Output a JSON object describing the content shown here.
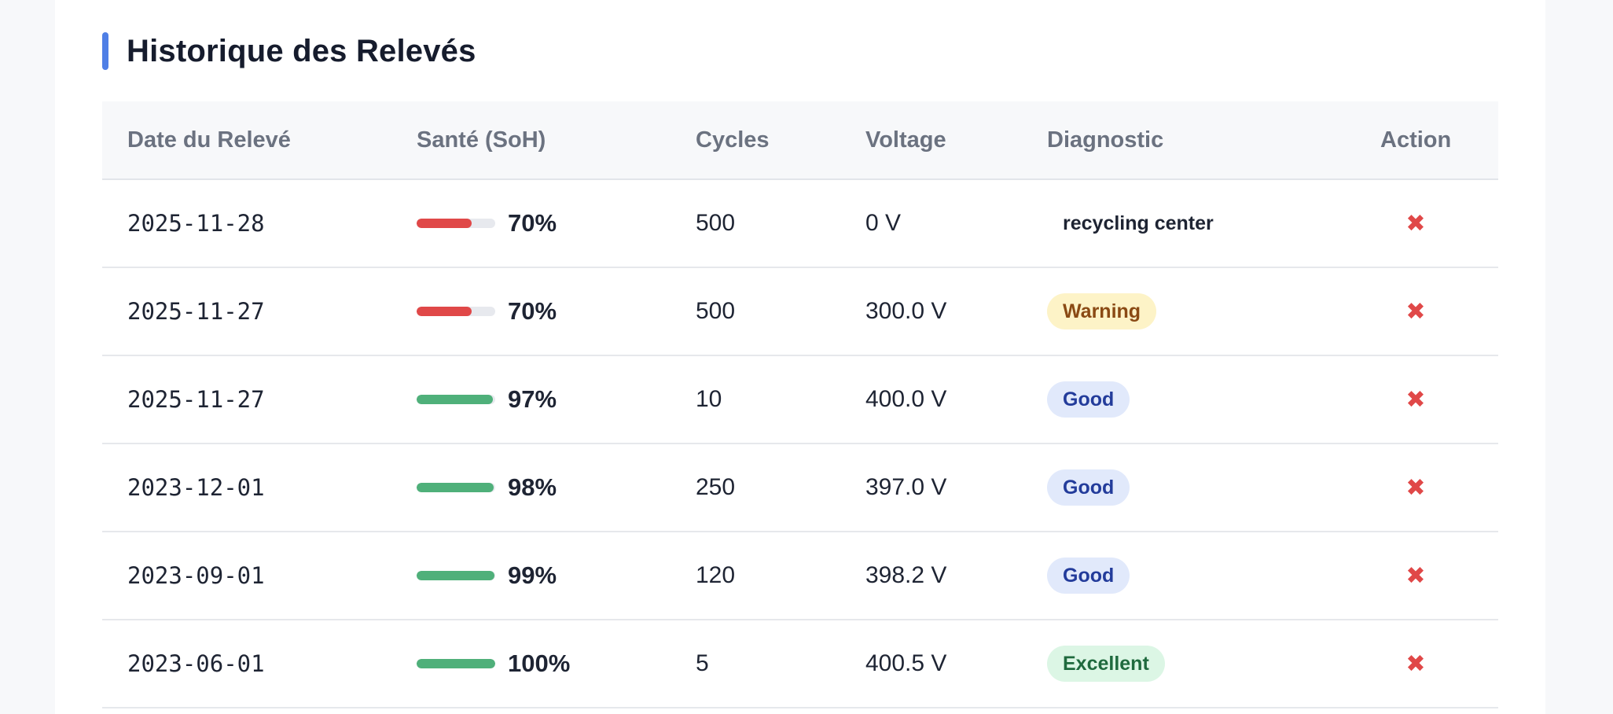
{
  "section": {
    "title": "Historique des Relevés",
    "accent_color": "#4f7fe6"
  },
  "table": {
    "headers": [
      "Date du Relevé",
      "Santé (SoH)",
      "Cycles",
      "Voltage",
      "Diagnostic",
      "Action"
    ],
    "rows": [
      {
        "date": "2025-11-28",
        "soh": "70%",
        "soh_fraction": 0.7,
        "soh_color": "#e04848",
        "cycles": "500",
        "voltage": "0 V",
        "diagnostic": "recycling center",
        "diag_style": "plain",
        "action_icon": "close-icon",
        "action": "✖"
      },
      {
        "date": "2025-11-27",
        "soh": "70%",
        "soh_fraction": 0.7,
        "soh_color": "#e04848",
        "cycles": "500",
        "voltage": "300.0 V",
        "diagnostic": "Warning",
        "diag_style": "warning",
        "action_icon": "close-icon",
        "action": "✖"
      },
      {
        "date": "2025-11-27",
        "soh": "97%",
        "soh_fraction": 0.97,
        "soh_color": "#4fb07a",
        "cycles": "10",
        "voltage": "400.0 V",
        "diagnostic": "Good",
        "diag_style": "good",
        "action_icon": "close-icon",
        "action": "✖"
      },
      {
        "date": "2023-12-01",
        "soh": "98%",
        "soh_fraction": 0.98,
        "soh_color": "#4fb07a",
        "cycles": "250",
        "voltage": "397.0 V",
        "diagnostic": "Good",
        "diag_style": "good",
        "action_icon": "close-icon",
        "action": "✖"
      },
      {
        "date": "2023-09-01",
        "soh": "99%",
        "soh_fraction": 0.99,
        "soh_color": "#4fb07a",
        "cycles": "120",
        "voltage": "398.2 V",
        "diagnostic": "Good",
        "diag_style": "good",
        "action_icon": "close-icon",
        "action": "✖"
      },
      {
        "date": "2023-06-01",
        "soh": "100%",
        "soh_fraction": 1.0,
        "soh_color": "#4fb07a",
        "cycles": "5",
        "voltage": "400.5 V",
        "diagnostic": "Excellent",
        "diag_style": "excellent",
        "action_icon": "close-icon",
        "action": "✖"
      }
    ]
  },
  "badge_colors": {
    "plain": {
      "bg": "#ffffff",
      "fg": "#1e2433"
    },
    "warning": {
      "bg": "#fdf3c7",
      "fg": "#8a4a14"
    },
    "good": {
      "bg": "#e1e9fb",
      "fg": "#233c9b"
    },
    "excellent": {
      "bg": "#dcf6e5",
      "fg": "#1f6a3e"
    }
  }
}
